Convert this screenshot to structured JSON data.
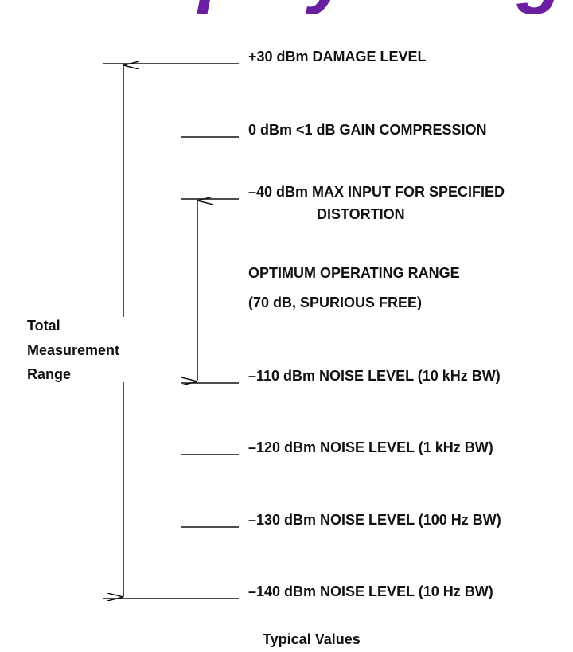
{
  "heading": "Display Range",
  "levels": [
    {
      "lines": [
        "+30 dBm DAMAGE LEVEL"
      ]
    },
    {
      "lines": [
        "0 dBm <1 dB GAIN COMPRESSION"
      ]
    },
    {
      "lines": [
        "–40 dBm MAX INPUT FOR SPECIFIED",
        "DISTORTION"
      ]
    },
    {
      "lines": [
        "–110 dBm NOISE LEVEL (10 kHz BW)"
      ]
    },
    {
      "lines": [
        "–120 dBm NOISE LEVEL (1 kHz BW)"
      ]
    },
    {
      "lines": [
        "–130 dBm NOISE LEVEL (100 Hz BW)"
      ]
    },
    {
      "lines": [
        "–140 dBm NOISE LEVEL (10 Hz BW)"
      ]
    }
  ],
  "optimum_range": [
    "OPTIMUM OPERATING RANGE",
    "(70 dB, SPURIOUS FREE)"
  ],
  "total_range": [
    "Total",
    "Measurement",
    "Range"
  ],
  "footer": "Typical Values"
}
